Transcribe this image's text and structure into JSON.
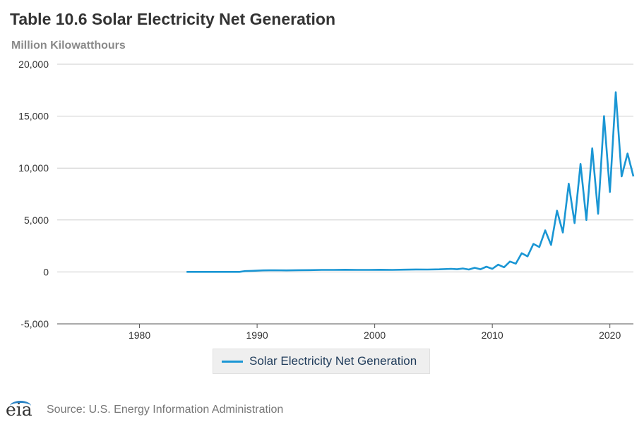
{
  "chart_data": {
    "type": "line",
    "title": "Table 10.6 Solar Electricity Net Generation",
    "subtitle": "Million Kilowatthours",
    "xlim": [
      1973,
      2022
    ],
    "ylim": [
      -5000,
      20000
    ],
    "x_ticks": [
      1980,
      1990,
      2000,
      2010,
      2020
    ],
    "y_ticks": [
      -5000,
      0,
      5000,
      10000,
      15000,
      20000
    ],
    "x_tick_labels": [
      "1980",
      "1990",
      "2000",
      "2010",
      "2020"
    ],
    "y_tick_labels": [
      "-5,000",
      "0",
      "5,000",
      "10,000",
      "15,000",
      "20,000"
    ],
    "grid": "horizontal",
    "legend_position": "bottom",
    "series": [
      {
        "name": "Solar Electricity Net Generation",
        "color": "#1a96d4",
        "x": [
          1984.0,
          1988.5,
          1989.0,
          1989.5,
          1990.5,
          1991.5,
          1992.5,
          1993.5,
          1994.5,
          1995.5,
          1996.5,
          1997.5,
          1998.5,
          1999.5,
          2000.5,
          2001.5,
          2002.5,
          2003.5,
          2004.5,
          2005.5,
          2006.5,
          2007.0,
          2007.5,
          2008.0,
          2008.5,
          2009.0,
          2009.5,
          2010.0,
          2010.5,
          2011.0,
          2011.5,
          2012.0,
          2012.5,
          2013.0,
          2013.5,
          2014.0,
          2014.5,
          2015.0,
          2015.5,
          2016.0,
          2016.5,
          2017.0,
          2017.5,
          2018.0,
          2018.5,
          2019.0,
          2019.5,
          2020.0,
          2020.5,
          2021.0,
          2021.5,
          2022.0
        ],
        "y": [
          5,
          5,
          80,
          100,
          150,
          160,
          150,
          170,
          180,
          200,
          200,
          210,
          200,
          200,
          210,
          200,
          220,
          240,
          230,
          250,
          300,
          260,
          330,
          230,
          400,
          260,
          500,
          300,
          700,
          450,
          1000,
          800,
          1800,
          1500,
          2700,
          2400,
          4000,
          2600,
          5900,
          3800,
          8500,
          4700,
          10400,
          5000,
          11900,
          5600,
          15000,
          7700,
          17300,
          9200,
          11400,
          9200
        ]
      }
    ]
  },
  "footer": {
    "logo_text": "eia",
    "source": "Source: U.S. Energy Information Administration"
  }
}
